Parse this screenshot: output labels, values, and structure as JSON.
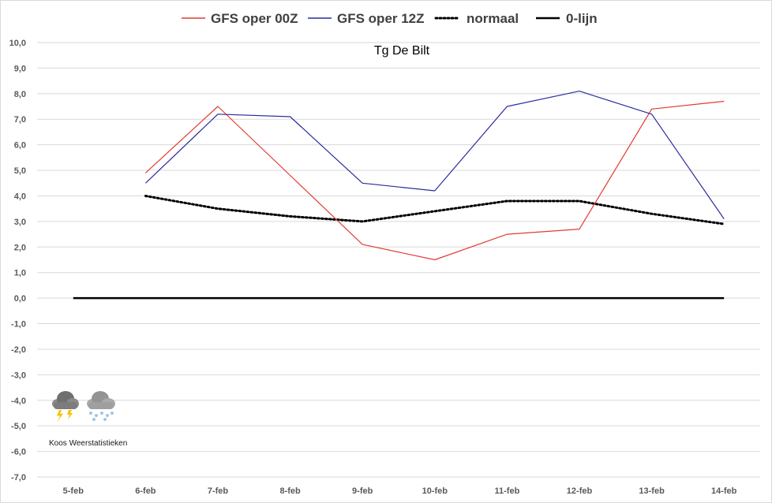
{
  "chart_data": {
    "type": "line",
    "title": "Tg De Bilt",
    "categories": [
      "5-feb",
      "6-feb",
      "7-feb",
      "8-feb",
      "9-feb",
      "10-feb",
      "11-feb",
      "12-feb",
      "13-feb",
      "14-feb"
    ],
    "ylim": [
      -7,
      10
    ],
    "y_ticks": [
      "10,0",
      "9,0",
      "8,0",
      "7,0",
      "6,0",
      "5,0",
      "4,0",
      "3,0",
      "2,0",
      "1,0",
      "0,0",
      "-1,0",
      "-2,0",
      "-3,0",
      "-4,0",
      "-5,0",
      "-6,0",
      "-7,0"
    ],
    "grid": true,
    "legend_position": "top",
    "series": [
      {
        "name": "GFS oper 00Z",
        "color": "#e03c31",
        "style": "solid",
        "values": [
          null,
          4.9,
          7.5,
          4.8,
          2.1,
          1.5,
          2.5,
          2.7,
          7.4,
          7.7
        ]
      },
      {
        "name": "GFS oper 12Z",
        "color": "#2c2c9e",
        "style": "solid",
        "values": [
          null,
          4.5,
          7.2,
          7.1,
          4.5,
          4.2,
          7.5,
          8.1,
          7.2,
          3.1
        ]
      },
      {
        "name": "normaal",
        "color": "#000000",
        "style": "dotted",
        "values": [
          null,
          4.0,
          3.5,
          3.2,
          3.0,
          3.4,
          3.8,
          3.8,
          3.3,
          2.9
        ]
      },
      {
        "name": "0-lijn",
        "color": "#000000",
        "style": "solid-thick",
        "values": [
          0,
          0,
          0,
          0,
          0,
          0,
          0,
          0,
          0,
          0
        ]
      }
    ]
  },
  "watermark": {
    "label": "Koos Weerstatistieken",
    "icons": [
      "thunderstorm-cloud-icon",
      "snow-cloud-icon"
    ]
  }
}
